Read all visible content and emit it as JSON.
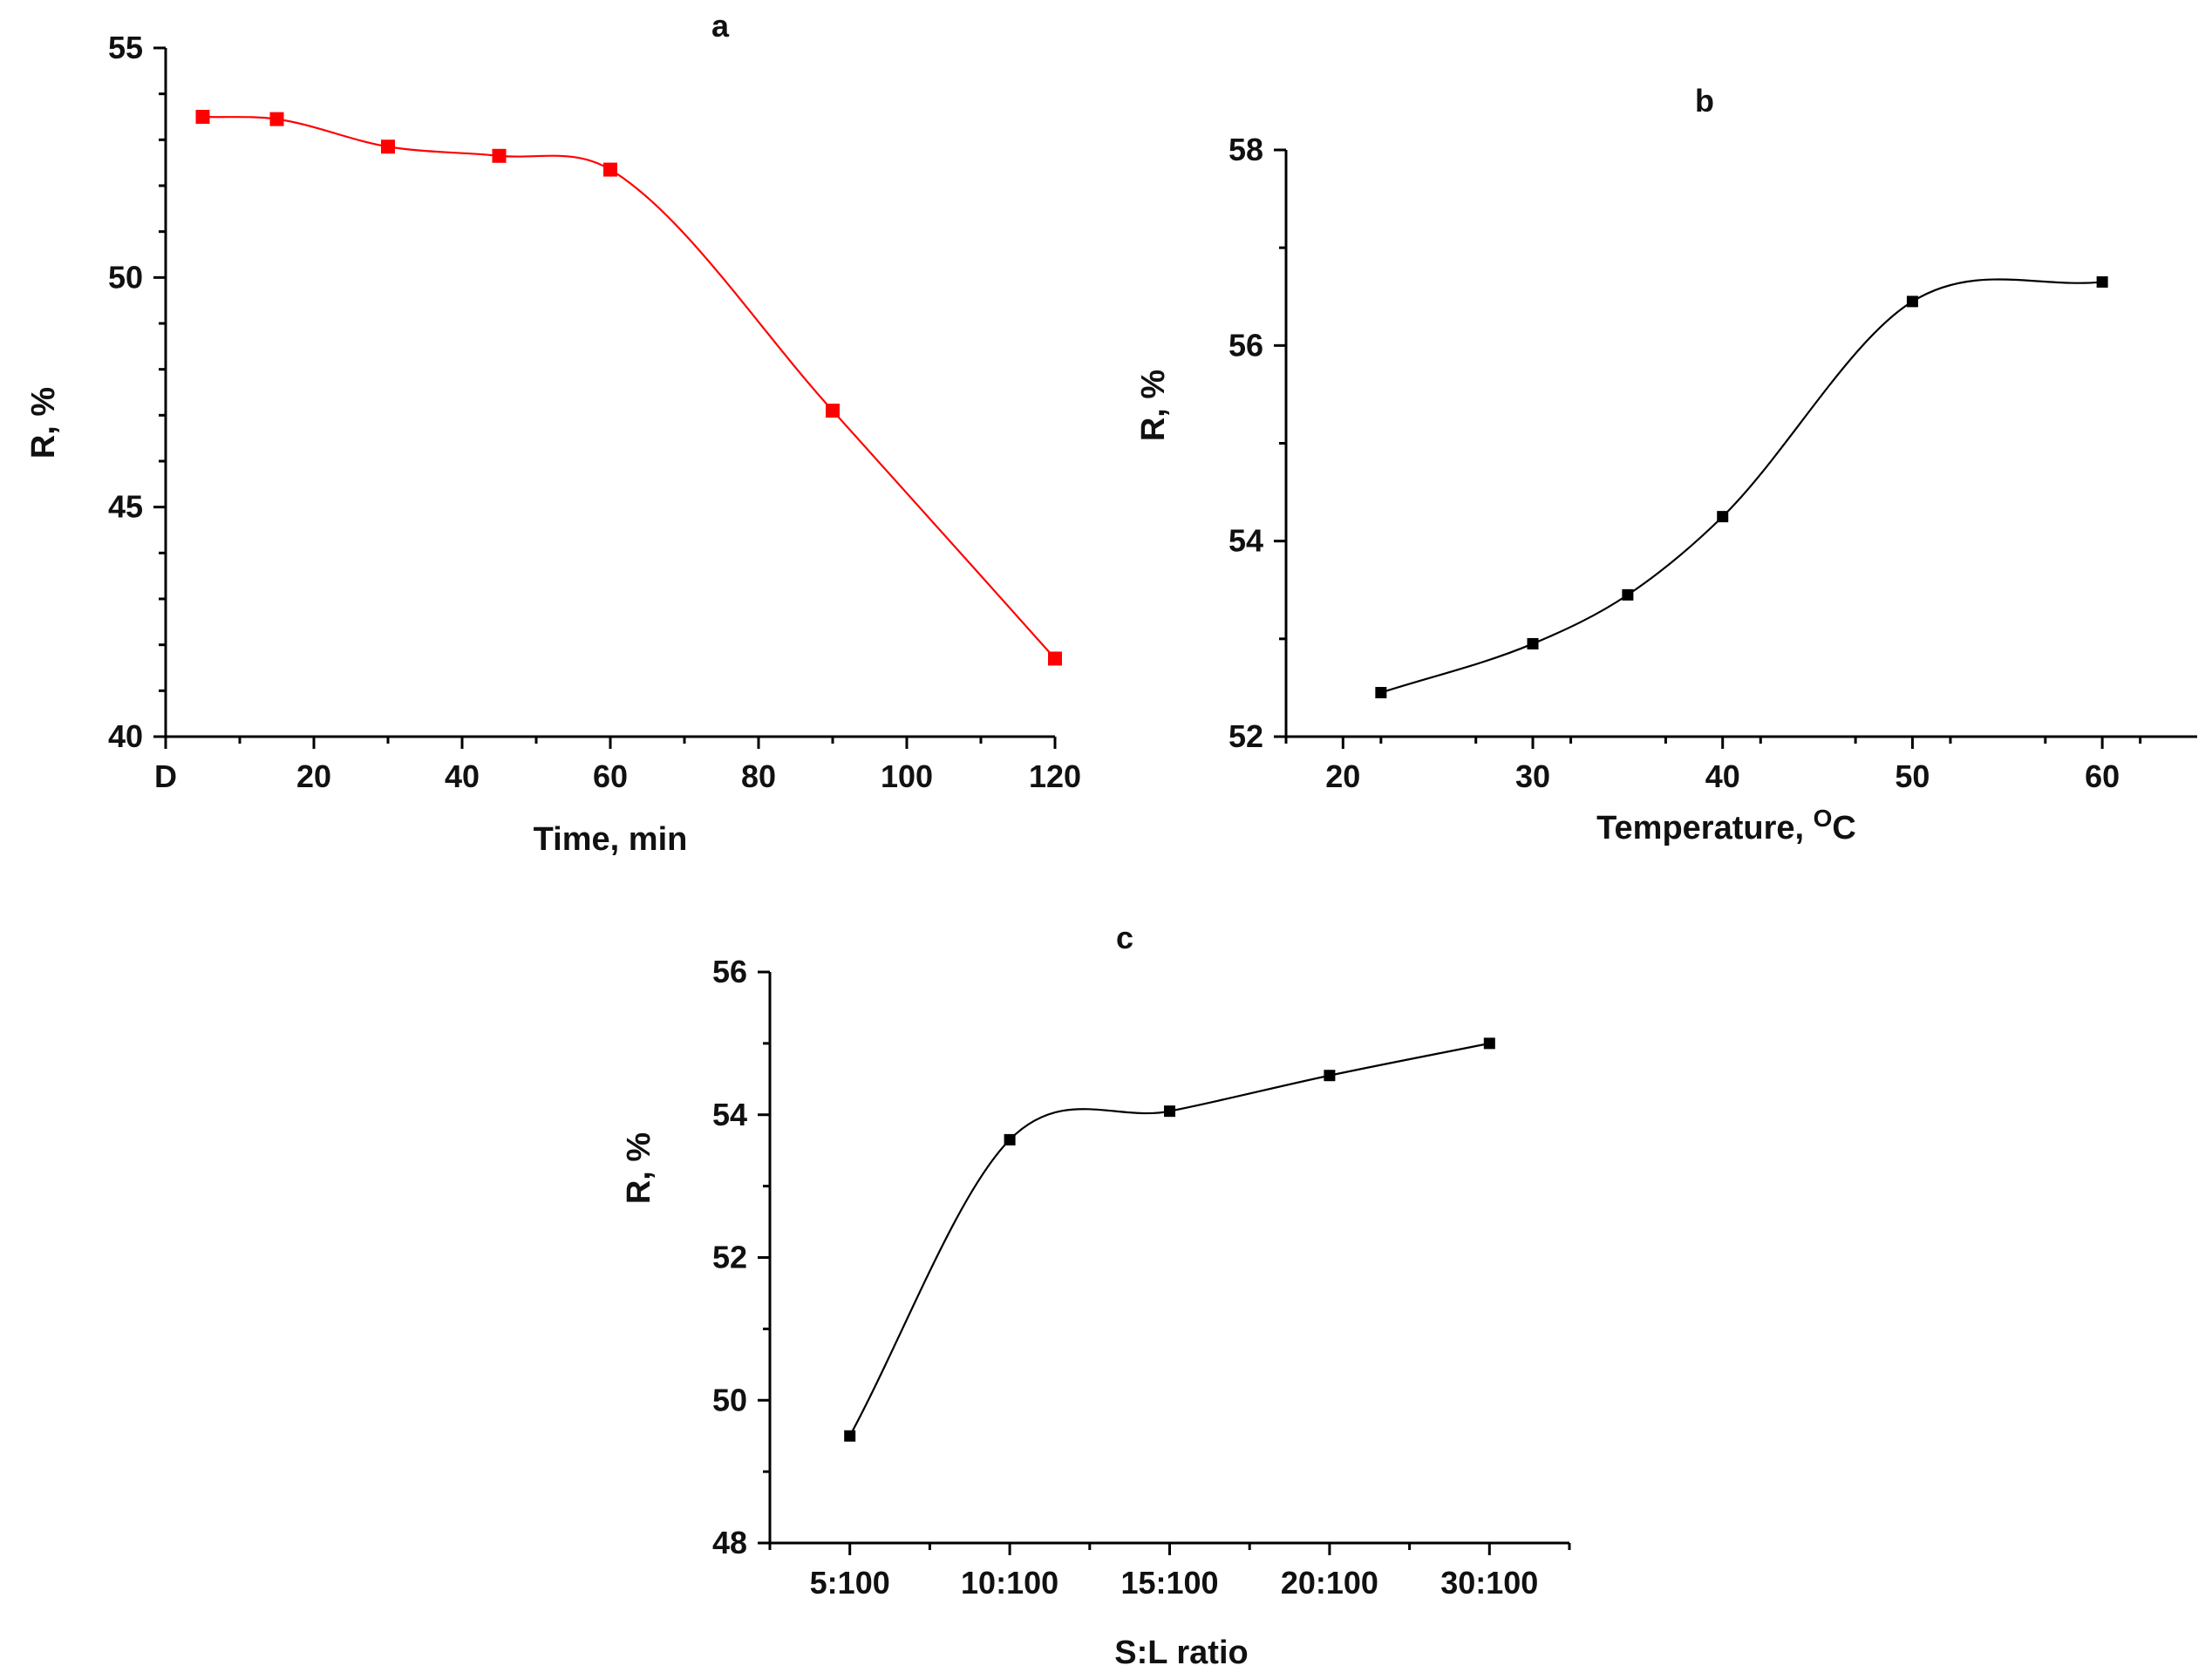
{
  "chart_data": [
    {
      "id": "a",
      "type": "line",
      "panel_label": "a",
      "xlabel": "Time, min",
      "ylabel": "R, %",
      "xlim": [
        0,
        120
      ],
      "ylim": [
        40,
        55
      ],
      "xticks": [
        0,
        20,
        40,
        60,
        80,
        100,
        120
      ],
      "xtick_labels": [
        "D",
        "20",
        "40",
        "60",
        "80",
        "100",
        "120"
      ],
      "yticks": [
        40,
        45,
        50,
        55
      ],
      "ytick_labels": [
        "40",
        "45",
        "50",
        "55"
      ],
      "color": "#ff0000",
      "series": [
        {
          "name": "R",
          "x": [
            5,
            15,
            30,
            45,
            60,
            90,
            120
          ],
          "y": [
            53.5,
            53.45,
            52.85,
            52.65,
            52.35,
            47.1,
            41.7
          ]
        }
      ]
    },
    {
      "id": "b",
      "type": "line",
      "panel_label": "b",
      "xlabel": "Temperature, ",
      "xlabel_unit": "C",
      "xlabel_superscript": "O",
      "ylabel": "R, %",
      "xlim": [
        17,
        65
      ],
      "ylim": [
        52,
        58
      ],
      "xticks": [
        20,
        30,
        40,
        50,
        60
      ],
      "xtick_labels": [
        "20",
        "30",
        "40",
        "50",
        "60"
      ],
      "yticks": [
        52,
        54,
        56,
        58
      ],
      "ytick_labels": [
        "52",
        "54",
        "56",
        "58"
      ],
      "color": "#000000",
      "series": [
        {
          "name": "R",
          "x": [
            22,
            30,
            35,
            40,
            50,
            60
          ],
          "y": [
            52.45,
            52.95,
            53.45,
            54.25,
            56.45,
            56.65
          ]
        }
      ]
    },
    {
      "id": "c",
      "type": "line",
      "panel_label": "c",
      "xlabel": "S:L ratio",
      "ylabel": "R, %",
      "xlim": [
        0.5,
        5.5
      ],
      "ylim": [
        48,
        56
      ],
      "xticks": [
        1,
        2,
        3,
        4,
        5
      ],
      "xtick_labels": [
        "5:100",
        "10:100",
        "15:100",
        "20:100",
        "30:100"
      ],
      "yticks": [
        48,
        50,
        52,
        54,
        56
      ],
      "ytick_labels": [
        "48",
        "50",
        "52",
        "54",
        "56"
      ],
      "color": "#000000",
      "series": [
        {
          "name": "R",
          "categories": [
            "5:100",
            "10:100",
            "15:100",
            "20:100",
            "30:100"
          ],
          "y": [
            49.5,
            53.65,
            54.05,
            54.55,
            55.0
          ]
        }
      ]
    }
  ]
}
